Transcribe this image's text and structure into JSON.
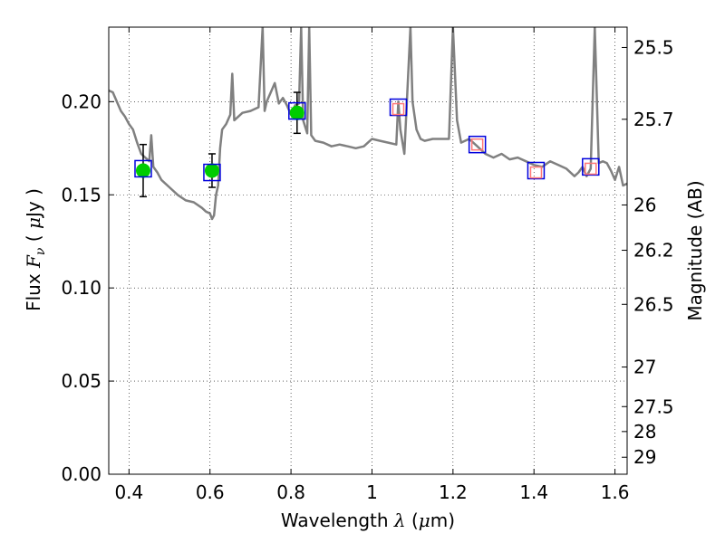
{
  "chart_data": {
    "type": "scatter",
    "xlabel_parts": [
      "Wavelength ",
      "λ",
      " (",
      "μ",
      "m)"
    ],
    "ylabel_parts": [
      "Flux ",
      "F",
      "ν",
      " ( ",
      "μ",
      "Jy )"
    ],
    "y2label": "Magnitude (AB)",
    "xlim": [
      0.35,
      1.63
    ],
    "ylim": [
      0.0,
      0.24
    ],
    "grid": true,
    "x_ticks": [
      0.4,
      0.6,
      0.8,
      1.0,
      1.2,
      1.4,
      1.6
    ],
    "x_tick_labels": [
      "0.4",
      "0.6",
      "0.8",
      "1",
      "1.2",
      "1.4",
      "1.6"
    ],
    "y_ticks": [
      0.0,
      0.05,
      0.1,
      0.15,
      0.2
    ],
    "y_tick_labels": [
      "0.00",
      "0.05",
      "0.10",
      "0.15",
      "0.20"
    ],
    "y2_ticks": [
      {
        "label": "25.5",
        "mag": 25.5
      },
      {
        "label": "25.7",
        "mag": 25.7
      },
      {
        "label": "26",
        "mag": 26.0
      },
      {
        "label": "26.2",
        "mag": 26.2
      },
      {
        "label": "26.5",
        "mag": 26.5
      },
      {
        "label": "27",
        "mag": 27.0
      },
      {
        "label": "27.5",
        "mag": 27.5
      },
      {
        "label": "28",
        "mag": 28.0
      },
      {
        "label": "29",
        "mag": 29.0
      }
    ],
    "series": [
      {
        "kind": "line",
        "color": "#808080",
        "x": [
          0.35,
          0.36,
          0.37,
          0.38,
          0.39,
          0.4,
          0.41,
          0.42,
          0.43,
          0.44,
          0.45,
          0.455,
          0.46,
          0.47,
          0.48,
          0.5,
          0.52,
          0.54,
          0.56,
          0.58,
          0.59,
          0.6,
          0.605,
          0.61,
          0.615,
          0.62,
          0.625,
          0.63,
          0.64,
          0.65,
          0.655,
          0.66,
          0.67,
          0.68,
          0.7,
          0.72,
          0.73,
          0.735,
          0.74,
          0.75,
          0.76,
          0.77,
          0.78,
          0.79,
          0.8,
          0.81,
          0.82,
          0.825,
          0.83,
          0.84,
          0.845,
          0.85,
          0.86,
          0.88,
          0.9,
          0.92,
          0.94,
          0.96,
          0.98,
          0.99,
          1.0,
          1.02,
          1.04,
          1.06,
          1.065,
          1.07,
          1.08,
          1.095,
          1.1,
          1.11,
          1.12,
          1.13,
          1.15,
          1.17,
          1.19,
          1.195,
          1.2,
          1.21,
          1.22,
          1.24,
          1.26,
          1.28,
          1.3,
          1.32,
          1.34,
          1.36,
          1.38,
          1.4,
          1.42,
          1.44,
          1.46,
          1.48,
          1.5,
          1.51,
          1.52,
          1.53,
          1.54,
          1.55,
          1.56,
          1.57,
          1.58,
          1.59,
          1.6,
          1.61,
          1.62,
          1.63
        ],
        "y": [
          0.206,
          0.205,
          0.2,
          0.195,
          0.192,
          0.188,
          0.185,
          0.178,
          0.172,
          0.17,
          0.168,
          0.182,
          0.165,
          0.162,
          0.158,
          0.154,
          0.15,
          0.147,
          0.146,
          0.143,
          0.141,
          0.14,
          0.137,
          0.139,
          0.15,
          0.155,
          0.175,
          0.185,
          0.188,
          0.193,
          0.215,
          0.19,
          0.192,
          0.194,
          0.195,
          0.197,
          0.24,
          0.195,
          0.2,
          0.205,
          0.21,
          0.199,
          0.202,
          0.198,
          0.193,
          0.198,
          0.199,
          0.24,
          0.19,
          0.183,
          0.24,
          0.182,
          0.179,
          0.178,
          0.176,
          0.177,
          0.176,
          0.175,
          0.176,
          0.178,
          0.18,
          0.179,
          0.178,
          0.177,
          0.2,
          0.185,
          0.172,
          0.24,
          0.2,
          0.185,
          0.18,
          0.179,
          0.18,
          0.18,
          0.18,
          0.21,
          0.24,
          0.19,
          0.178,
          0.18,
          0.176,
          0.172,
          0.17,
          0.172,
          0.169,
          0.17,
          0.168,
          0.166,
          0.165,
          0.168,
          0.166,
          0.164,
          0.16,
          0.162,
          0.165,
          0.16,
          0.164,
          0.24,
          0.167,
          0.168,
          0.167,
          0.163,
          0.158,
          0.165,
          0.155,
          0.156
        ]
      },
      {
        "kind": "points",
        "color": "#00cc00",
        "marker": "circle",
        "x": [
          0.435,
          0.605,
          0.815
        ],
        "y": [
          0.163,
          0.163,
          0.194
        ],
        "yerr": [
          0.014,
          0.009,
          0.011
        ]
      },
      {
        "kind": "points",
        "color": "#0000dd",
        "marker": "open-square",
        "x": [
          0.435,
          0.605,
          0.815,
          1.065,
          1.26,
          1.405,
          1.54
        ],
        "y": [
          0.164,
          0.162,
          0.195,
          0.197,
          0.177,
          0.163,
          0.165
        ]
      },
      {
        "kind": "points",
        "color": "#ff7777",
        "marker": "open-square-small",
        "x": [
          1.065,
          1.26,
          1.405,
          1.54
        ],
        "y": [
          0.196,
          0.177,
          0.162,
          0.164
        ]
      }
    ]
  }
}
